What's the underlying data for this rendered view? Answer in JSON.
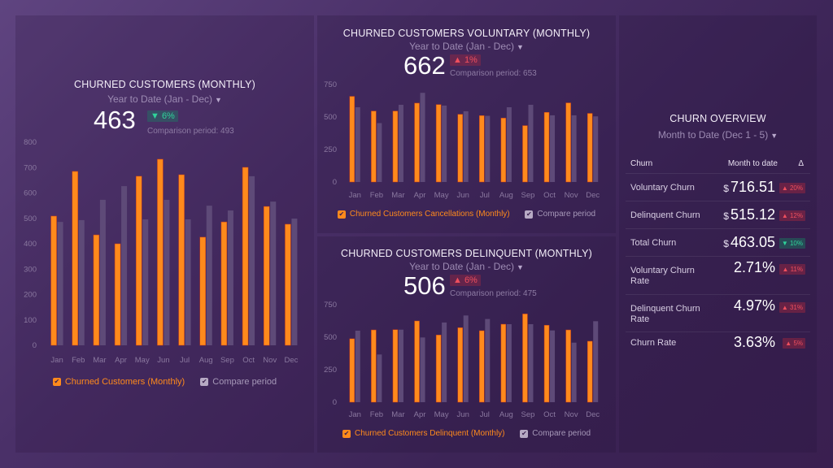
{
  "colors": {
    "primary_series": "#ff8a1c",
    "compare_series": "#5e4a78",
    "up_badge": "#ef4f5e",
    "down_badge": "#2fd39a"
  },
  "main": {
    "title": "CHURNED CUSTOMERS (MONTHLY)",
    "period": "Year to Date (Jan - Dec)",
    "value": "463",
    "change": "▼ 6%",
    "change_direction": "down",
    "comparison": "Comparison period: 493",
    "legend_primary": "Churned Customers (Monthly)",
    "legend_compare": "Compare period"
  },
  "voluntary": {
    "title": "CHURNED CUSTOMERS VOLUNTARY (MONTHLY)",
    "period": "Year to Date (Jan - Dec)",
    "value": "662",
    "change": "▲ 1%",
    "change_direction": "up",
    "comparison": "Comparison period: 653",
    "legend_primary": "Churned Customers Cancellations (Monthly)",
    "legend_compare": "Compare period"
  },
  "delinquent": {
    "title": "CHURNED CUSTOMERS DELINQUENT (MONTHLY)",
    "period": "Year to Date (Jan - Dec)",
    "value": "506",
    "change": "▲ 6%",
    "change_direction": "up",
    "comparison": "Comparison period: 475",
    "legend_primary": "Churned Customers Delinquent (Monthly)",
    "legend_compare": "Compare period"
  },
  "overview": {
    "title": "CHURN OVERVIEW",
    "period": "Month to Date (Dec 1 - 5)",
    "headers": [
      "Churn",
      "Month to date",
      "Δ"
    ],
    "rows": [
      {
        "label": "Voluntary Churn",
        "currency": "$",
        "value": "716.51",
        "delta": "▲ 20%",
        "direction": "up"
      },
      {
        "label": "Delinquent Churn",
        "currency": "$",
        "value": "515.12",
        "delta": "▲ 12%",
        "direction": "up"
      },
      {
        "label": "Total Churn",
        "currency": "$",
        "value": "463.05",
        "delta": "▼ 10%",
        "direction": "down"
      },
      {
        "label": "Voluntary Churn Rate",
        "currency": "",
        "value": "2.71%",
        "delta": "▲ 11%",
        "direction": "up"
      },
      {
        "label": "Delinquent Churn Rate",
        "currency": "",
        "value": "4.97%",
        "delta": "▲ 31%",
        "direction": "up"
      },
      {
        "label": "Churn Rate",
        "currency": "",
        "value": "3.63%",
        "delta": "▲ 5%",
        "direction": "up"
      }
    ]
  },
  "chart_data": [
    {
      "type": "bar",
      "title": "CHURNED CUSTOMERS (MONTHLY)",
      "categories": [
        "Jan",
        "Feb",
        "Mar",
        "Apr",
        "May",
        "Jun",
        "Jul",
        "Aug",
        "Sep",
        "Oct",
        "Nov",
        "Dec"
      ],
      "series": [
        {
          "name": "Churned Customers (Monthly)",
          "values": [
            509,
            685,
            435,
            400,
            666,
            733,
            672,
            426,
            486,
            701,
            547,
            477
          ]
        },
        {
          "name": "Compare period",
          "values": [
            486,
            493,
            573,
            627,
            496,
            573,
            496,
            550,
            531,
            666,
            566,
            499
          ]
        }
      ],
      "yticks": [
        "0",
        "100",
        "200",
        "300",
        "400",
        "500",
        "600",
        "700",
        "800"
      ],
      "ylim": [
        0,
        800
      ],
      "xlabel": "",
      "ylabel": "",
      "grid": false,
      "legend": "bottom"
    },
    {
      "type": "bar",
      "title": "CHURNED CUSTOMERS VOLUNTARY (MONTHLY)",
      "categories": [
        "Jan",
        "Feb",
        "Mar",
        "Apr",
        "May",
        "Jun",
        "Jul",
        "Aug",
        "Sep",
        "Oct",
        "Nov",
        "Dec"
      ],
      "series": [
        {
          "name": "Churned Customers Cancellations (Monthly)",
          "values": [
            659,
            546,
            546,
            607,
            596,
            521,
            511,
            492,
            434,
            536,
            609,
            528
          ]
        },
        {
          "name": "Compare period",
          "values": [
            575,
            453,
            594,
            686,
            588,
            544,
            509,
            575,
            594,
            513,
            513,
            505
          ]
        }
      ],
      "yticks": [
        "0",
        "250",
        "500",
        "750"
      ],
      "ylim": [
        0,
        750
      ],
      "xlabel": "",
      "ylabel": "",
      "grid": false,
      "legend": "bottom"
    },
    {
      "type": "bar",
      "title": "CHURNED CUSTOMERS DELINQUENT (MONTHLY)",
      "categories": [
        "Jan",
        "Feb",
        "Mar",
        "Apr",
        "May",
        "Jun",
        "Jul",
        "Aug",
        "Sep",
        "Oct",
        "Nov",
        "Dec"
      ],
      "series": [
        {
          "name": "Churned Customers Delinquent (Monthly)",
          "values": [
            488,
            556,
            558,
            625,
            517,
            573,
            550,
            600,
            679,
            592,
            556,
            469
          ]
        },
        {
          "name": "Compare period",
          "values": [
            550,
            367,
            558,
            498,
            613,
            667,
            640,
            600,
            600,
            552,
            458,
            623
          ]
        }
      ],
      "yticks": [
        "0",
        "250",
        "500",
        "750"
      ],
      "ylim": [
        0,
        750
      ],
      "xlabel": "",
      "ylabel": "",
      "grid": false,
      "legend": "bottom"
    }
  ]
}
